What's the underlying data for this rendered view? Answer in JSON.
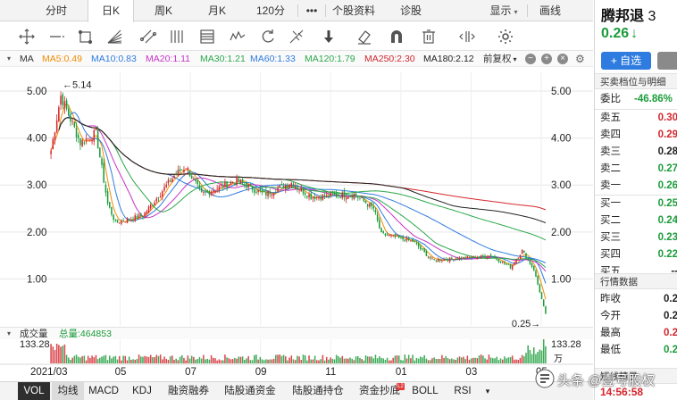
{
  "period_tabs": [
    {
      "label": "分时",
      "active": false
    },
    {
      "label": "日K",
      "active": true
    },
    {
      "label": "周K",
      "active": false
    },
    {
      "label": "月K",
      "active": false
    },
    {
      "label": "120分",
      "active": false
    },
    {
      "label": "•••",
      "active": false
    },
    {
      "label": "个股资料",
      "active": false
    },
    {
      "label": "诊股",
      "active": false
    }
  ],
  "display_menu": {
    "label": "显示",
    "caret": "▾"
  },
  "draw_menu": {
    "label": "画线"
  },
  "toolbar_icons": [
    "crosshair-icon",
    "horizontal-line-icon",
    "rectangle-icon",
    "fan-icon",
    "channel-icon",
    "parallel-lines-icon",
    "fibonacci-icon",
    "wave-icon",
    "cycle-icon",
    "gann-icon",
    "arrow-down-icon",
    "eraser-icon",
    "magnet-icon",
    "trash-icon",
    "expand-icon",
    "settings-icon"
  ],
  "ma_legend": {
    "label": "MA",
    "items": [
      {
        "text": "MA5:0.49",
        "color": "#f08c00"
      },
      {
        "text": "MA10:0.83",
        "color": "#2f7ce0"
      },
      {
        "text": "MA20:1.11",
        "color": "#c633c6"
      },
      {
        "text": "MA30:1.21",
        "color": "#2aa84a"
      },
      {
        "text": "MA60:1.33",
        "color": "#2f7ce0"
      },
      {
        "text": "MA120:1.79",
        "color": "#2aa84a"
      },
      {
        "text": "MA250:2.30",
        "color": "#d4262c"
      },
      {
        "text": "MA180:2.12",
        "color": "#222222"
      }
    ],
    "adjust_label": "前复权",
    "adjust_caret": "▾"
  },
  "chart_data": {
    "type": "candlestick",
    "y_ticks": [
      "5.00",
      "4.00",
      "3.00",
      "2.00",
      "1.00"
    ],
    "ylim": [
      0,
      5.4
    ],
    "x_ticks": [
      "2021/03",
      "05",
      "07",
      "09",
      "11",
      "01",
      "03",
      "05"
    ],
    "max_annotation": "←5.14",
    "min_annotation": "0.25→",
    "max_price": 5.14,
    "min_price": 0.25,
    "volume_label": "成交量",
    "volume_total": "总量:464853",
    "volume_axis_max": "133.28",
    "volume_unit": "万",
    "up_color": "#d4262c",
    "down_color": "#1a9c3a",
    "segments": [
      {
        "from": 3.5,
        "to": 4.9,
        "days": 6
      },
      {
        "from": 4.9,
        "to": 3.9,
        "days": 10
      },
      {
        "from": 3.9,
        "to": 4.1,
        "days": 8
      },
      {
        "from": 4.1,
        "to": 2.6,
        "days": 6
      },
      {
        "from": 2.6,
        "to": 2.2,
        "days": 4
      },
      {
        "from": 2.2,
        "to": 2.35,
        "days": 14
      },
      {
        "from": 2.35,
        "to": 3.2,
        "days": 16
      },
      {
        "from": 3.2,
        "to": 3.4,
        "days": 6
      },
      {
        "from": 3.4,
        "to": 2.8,
        "days": 8
      },
      {
        "from": 2.8,
        "to": 3.1,
        "days": 18
      },
      {
        "from": 3.1,
        "to": 2.8,
        "days": 14
      },
      {
        "from": 2.8,
        "to": 3.05,
        "days": 14
      },
      {
        "from": 3.05,
        "to": 2.75,
        "days": 10
      },
      {
        "from": 2.75,
        "to": 2.8,
        "days": 22
      },
      {
        "from": 2.8,
        "to": 2.5,
        "days": 10
      },
      {
        "from": 2.5,
        "to": 1.95,
        "days": 4
      },
      {
        "from": 1.95,
        "to": 1.8,
        "days": 16
      },
      {
        "from": 1.8,
        "to": 1.4,
        "days": 10
      },
      {
        "from": 1.4,
        "to": 1.45,
        "days": 18
      },
      {
        "from": 1.45,
        "to": 1.5,
        "days": 12
      },
      {
        "from": 1.5,
        "to": 1.25,
        "days": 10
      },
      {
        "from": 1.25,
        "to": 1.6,
        "days": 6
      },
      {
        "from": 1.6,
        "to": 1.2,
        "days": 6
      },
      {
        "from": 1.2,
        "to": 0.25,
        "days": 6
      }
    ],
    "moving_averages": [
      {
        "name": "MA5",
        "color": "#f08c00",
        "period": 5
      },
      {
        "name": "MA10",
        "color": "#2f7ce0",
        "period": 10
      },
      {
        "name": "MA20",
        "color": "#c633c6",
        "period": 20
      },
      {
        "name": "MA30",
        "color": "#2aa84a",
        "period": 30
      },
      {
        "name": "MA60",
        "color": "#2f7ce0",
        "period": 60
      },
      {
        "name": "MA120",
        "color": "#2aa84a",
        "period": 120
      },
      {
        "name": "MA250",
        "color": "#d4262c",
        "period": 250
      },
      {
        "name": "MA180",
        "color": "#222222",
        "period": 180
      }
    ]
  },
  "indicator_tabs": [
    {
      "label": "VOL",
      "active": true
    },
    {
      "label": "均线",
      "boxed": true
    },
    {
      "label": "MACD"
    },
    {
      "label": "KDJ"
    },
    {
      "label": "融资融券"
    },
    {
      "label": "陆股通资金"
    },
    {
      "label": "陆股通持仓"
    },
    {
      "label": "资金抄底",
      "badge": "L2"
    },
    {
      "label": "BOLL"
    },
    {
      "label": "RSI"
    }
  ],
  "indicator_more": "▾",
  "stock": {
    "name": "腾邦退",
    "code_partial": "3",
    "price": "0.26",
    "arrow": "↓",
    "add_label": "+ 自选"
  },
  "order_book": {
    "title": "买卖档位与明细",
    "ratio_label": "委比",
    "ratio_value": "-46.86%",
    "asks": [
      {
        "label": "卖五",
        "price": "0.30",
        "color": "red"
      },
      {
        "label": "卖四",
        "price": "0.29",
        "color": "red"
      },
      {
        "label": "卖三",
        "price": "0.28",
        "color": "black"
      },
      {
        "label": "卖二",
        "price": "0.27",
        "color": "green"
      },
      {
        "label": "卖一",
        "price": "0.26",
        "color": "green"
      }
    ],
    "bids": [
      {
        "label": "买一",
        "price": "0.25",
        "color": "green"
      },
      {
        "label": "买二",
        "price": "0.24",
        "color": "green"
      },
      {
        "label": "买三",
        "price": "0.23",
        "color": "green"
      },
      {
        "label": "买四",
        "price": "0.22",
        "color": "green"
      },
      {
        "label": "买五",
        "price": "--",
        "color": "black"
      }
    ]
  },
  "quote": {
    "title": "行情数据",
    "rows": [
      {
        "label": "昨收",
        "value": "0.2",
        "color": "black"
      },
      {
        "label": "今开",
        "value": "0.2",
        "color": "black"
      },
      {
        "label": "最高",
        "value": "0.2",
        "color": "red"
      },
      {
        "label": "最低",
        "value": "0.2",
        "color": "green"
      }
    ]
  },
  "brief": {
    "title": "短线精灵",
    "time": "14:56:58"
  },
  "watermark": {
    "text": "头条 @壹号股权"
  }
}
